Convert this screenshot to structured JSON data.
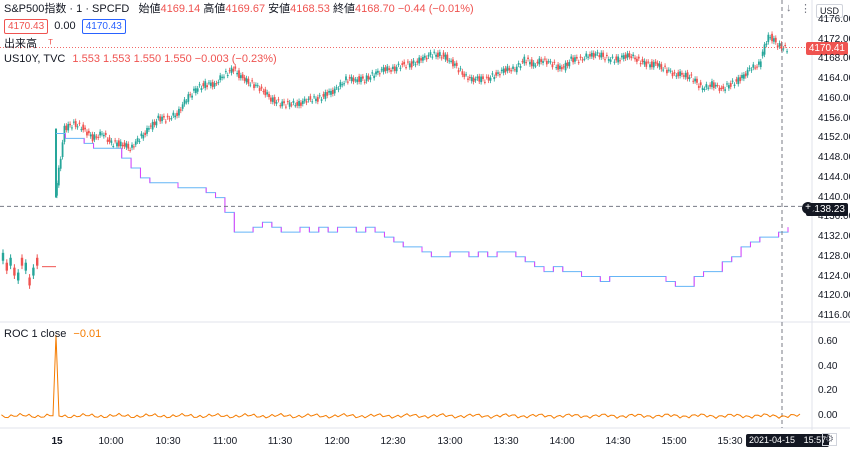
{
  "header": {
    "symbol": "S&P500指数 · 1 · SPCFD",
    "open_label": "始値",
    "open_value": "4169.14",
    "high_label": "高値",
    "high_value": "4169.67",
    "low_label": "安値",
    "low_value": "4168.53",
    "close_label": "終値",
    "close_value": "4168.70",
    "change": "−0.44 (−0.01%)",
    "bid_box": "4170.43",
    "spread": "0.00",
    "ask_box": "4170.43",
    "volume_label": "出来高"
  },
  "overlay": {
    "label": "US10Y, TVC",
    "values": "1.553  1.553  1.550  1.550  −0.003 (−0.23%)"
  },
  "roc": {
    "label": "ROC 1 close",
    "value": "−0.01"
  },
  "price_tag": {
    "value": "4170.41",
    "color": "#ef5350"
  },
  "crosshair_tag": {
    "value": "4138.23"
  },
  "date_tag": {
    "value": "2021-04-15",
    "time": "15:57"
  },
  "currency": "USD",
  "chart_data": [
    {
      "type": "line",
      "name": "S&P500指数 SPCFD 1分足",
      "x": [
        "09:30",
        "09:35",
        "09:40",
        "09:45",
        "09:50",
        "09:55",
        "10:00",
        "10:05",
        "10:10",
        "10:15",
        "10:20",
        "10:25",
        "10:30",
        "10:35",
        "10:40",
        "10:45",
        "10:50",
        "10:55",
        "11:00",
        "11:05",
        "11:10",
        "11:15",
        "11:20",
        "11:25",
        "11:30",
        "11:35",
        "11:40",
        "11:45",
        "11:50",
        "11:55",
        "12:00",
        "12:05",
        "12:10",
        "12:15",
        "12:20",
        "12:25",
        "12:30",
        "12:35",
        "12:40",
        "12:45",
        "12:50",
        "12:55",
        "13:00",
        "13:05",
        "13:10",
        "13:15",
        "13:20",
        "13:25",
        "13:30",
        "13:35",
        "13:40",
        "13:45",
        "13:50",
        "13:55",
        "14:00",
        "14:05",
        "14:10",
        "14:15",
        "14:20",
        "14:25",
        "14:30",
        "14:35",
        "14:40",
        "14:45",
        "14:50",
        "14:55",
        "15:00",
        "15:05",
        "15:10",
        "15:15",
        "15:20",
        "15:25",
        "15:30",
        "15:35",
        "15:40",
        "15:45",
        "15:50",
        "15:55",
        "15:57"
      ],
      "series": [
        {
          "name": "S&P500指数",
          "values": [
            4140,
            4154,
            4155,
            4154,
            4152,
            4153,
            4151,
            4151,
            4150,
            4152,
            4154,
            4156,
            4156,
            4157,
            4160,
            4162,
            4163,
            4163,
            4165,
            4166,
            4164,
            4163,
            4162,
            4160,
            4159,
            4159,
            4159,
            4160,
            4160,
            4161,
            4162,
            4164,
            4164,
            4164,
            4165,
            4166,
            4166,
            4167,
            4167,
            4168,
            4169,
            4169,
            4168,
            4166,
            4164,
            4164,
            4164,
            4165,
            4166,
            4166,
            4168,
            4167,
            4168,
            4167,
            4166,
            4168,
            4168,
            4169,
            4169,
            4168,
            4168,
            4169,
            4168,
            4167,
            4167,
            4166,
            4165,
            4165,
            4164,
            4162,
            4163,
            4162,
            4163,
            4164,
            4166,
            4167,
            4173,
            4171,
            4170
          ]
        }
      ],
      "ylim": [
        4116,
        4176
      ],
      "yticks": [
        4116,
        4120,
        4124,
        4128,
        4132,
        4136,
        4140,
        4144,
        4148,
        4152,
        4156,
        4160,
        4164,
        4168,
        4172,
        4176
      ],
      "xticks": [
        "15",
        "10:00",
        "10:30",
        "11:00",
        "11:30",
        "12:00",
        "12:30",
        "13:00",
        "13:30",
        "14:00",
        "14:30",
        "15:00",
        "15:30"
      ]
    },
    {
      "type": "line",
      "name": "US10Y, TVC",
      "x": [
        "09:30",
        "09:35",
        "09:40",
        "09:45",
        "09:50",
        "09:55",
        "10:00",
        "10:05",
        "10:10",
        "10:15",
        "10:20",
        "10:25",
        "10:30",
        "10:35",
        "10:40",
        "10:45",
        "10:50",
        "10:55",
        "11:00",
        "11:05",
        "11:10",
        "11:15",
        "11:20",
        "11:25",
        "11:30",
        "11:35",
        "11:40",
        "11:45",
        "11:50",
        "11:55",
        "12:00",
        "12:05",
        "12:10",
        "12:15",
        "12:20",
        "12:25",
        "12:30",
        "12:35",
        "12:40",
        "12:45",
        "12:50",
        "12:55",
        "13:00",
        "13:05",
        "13:10",
        "13:15",
        "13:20",
        "13:25",
        "13:30",
        "13:35",
        "13:40",
        "13:45",
        "13:50",
        "13:55",
        "14:00",
        "14:05",
        "14:10",
        "14:15",
        "14:20",
        "14:25",
        "14:30",
        "14:35",
        "14:40",
        "14:45",
        "14:50",
        "14:55",
        "15:00",
        "15:05",
        "15:10",
        "15:15",
        "15:20",
        "15:25",
        "15:30",
        "15:35",
        "15:40",
        "15:45",
        "15:50",
        "15:55",
        "15:57"
      ],
      "series": [
        {
          "name": "US10Y",
          "values": [
            4153,
            4152,
            4152,
            4151,
            4150,
            4150,
            4150,
            4148,
            4146,
            4144,
            4143,
            4143,
            4143,
            4142,
            4142,
            4142,
            4141,
            4140,
            4137,
            4133,
            4133,
            4134,
            4135,
            4134,
            4133,
            4133,
            4134,
            4133,
            4134,
            4133,
            4134,
            4134,
            4133,
            4134,
            4133,
            4132,
            4131,
            4130,
            4130,
            4129,
            4128,
            4128,
            4129,
            4129,
            4128,
            4129,
            4128,
            4129,
            4129,
            4128,
            4127,
            4126,
            4125,
            4126,
            4125,
            4125,
            4124,
            4124,
            4123,
            4124,
            4124,
            4124,
            4124,
            4124,
            4124,
            4123,
            4122,
            4122,
            4124,
            4125,
            4125,
            4127,
            4128,
            4130,
            4131,
            4132,
            4132,
            4133,
            4134
          ]
        }
      ]
    },
    {
      "type": "line",
      "name": "ROC 1 close",
      "series": [
        {
          "name": "ROC 1 close",
          "values": [
            0.0,
            0.66,
            0.0,
            0.01,
            -0.01,
            0.0,
            -0.01
          ]
        }
      ],
      "ylim": [
        -0.05,
        0.7
      ],
      "yticks": [
        0.0,
        0.2,
        0.4,
        0.6
      ]
    }
  ]
}
